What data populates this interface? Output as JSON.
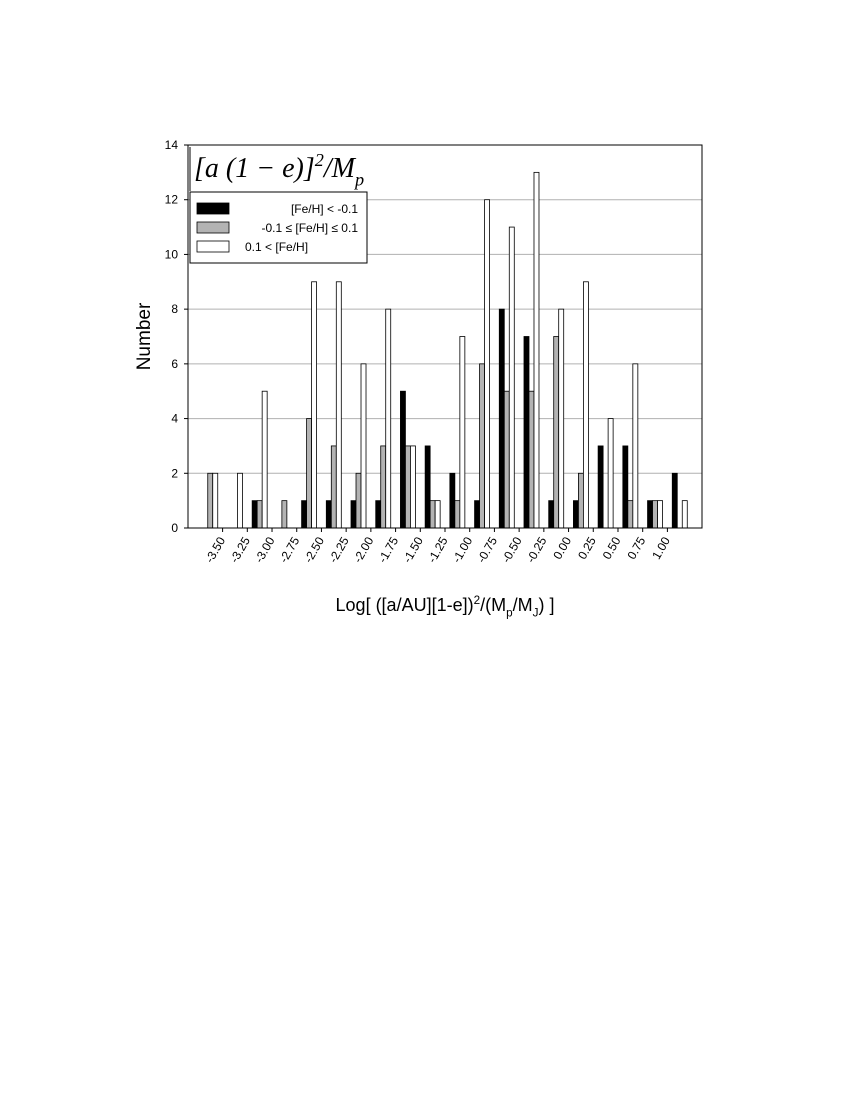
{
  "chart_data": {
    "type": "histogram",
    "annotation": [
      {
        "text": "[a (1 − e)]"
      },
      {
        "text": "2",
        "script": "sup"
      },
      {
        "text": "/M"
      },
      {
        "text": "p",
        "script": "sub"
      }
    ],
    "y_label": "Number",
    "x_label": [
      {
        "text": "Log[ ([a/AU][1-e])"
      },
      {
        "text": "2",
        "script": "sup"
      },
      {
        "text": "/(M"
      },
      {
        "text": "p",
        "script": "sub"
      },
      {
        "text": "/M"
      },
      {
        "text": "J",
        "script": "sub"
      },
      {
        "text": ") ]"
      }
    ],
    "bins": [
      -3.75,
      -3.5,
      -3.25,
      -3.0,
      -2.75,
      -2.5,
      -2.25,
      -2.0,
      -1.75,
      -1.5,
      -1.25,
      -1.0,
      -0.75,
      -0.5,
      -0.25,
      0.0,
      0.25,
      0.5,
      0.75,
      1.0,
      1.25
    ],
    "series": [
      {
        "name": "[Fe/H] < -0.1",
        "color": "#000000",
        "values": [
          0,
          0,
          1,
          0,
          1,
          1,
          1,
          1,
          5,
          3,
          2,
          1,
          8,
          7,
          1,
          1,
          3,
          3,
          1,
          2
        ]
      },
      {
        "name": "-0.1 ≤ [Fe/H] ≤ 0.1",
        "color": "#b3b3b3",
        "values": [
          2,
          0,
          1,
          1,
          4,
          3,
          2,
          3,
          3,
          1,
          1,
          6,
          5,
          5,
          7,
          2,
          0,
          1,
          1,
          0
        ]
      },
      {
        "name": "0.1 < [Fe/H]",
        "color": "#ffffff",
        "values": [
          2,
          2,
          5,
          0,
          9,
          9,
          6,
          8,
          3,
          1,
          7,
          12,
          11,
          13,
          8,
          9,
          4,
          6,
          1,
          1
        ]
      }
    ],
    "xlim": [
      -3.85,
      1.35
    ],
    "xticks": [
      {
        "value": -3.5,
        "label": "-3.50"
      },
      {
        "value": -3.25,
        "label": "-3.25"
      },
      {
        "value": -3.0,
        "label": "-3.00"
      },
      {
        "value": -2.75,
        "label": "-2.75"
      },
      {
        "value": -2.5,
        "label": "-2.50"
      },
      {
        "value": -2.25,
        "label": "-2.25"
      },
      {
        "value": -2.0,
        "label": "-2.00"
      },
      {
        "value": -1.75,
        "label": "-1.75"
      },
      {
        "value": -1.5,
        "label": "-1.50"
      },
      {
        "value": -1.25,
        "label": "-1.25"
      },
      {
        "value": -1.0,
        "label": "-1.00"
      },
      {
        "value": -0.75,
        "label": "-0.75"
      },
      {
        "value": -0.5,
        "label": "-0.50"
      },
      {
        "value": -0.25,
        "label": "-0.25"
      },
      {
        "value": 0.0,
        "label": "0.00"
      },
      {
        "value": 0.25,
        "label": "0.25"
      },
      {
        "value": 0.5,
        "label": "0.50"
      },
      {
        "value": 0.75,
        "label": "0.75"
      },
      {
        "value": 1.0,
        "label": "1.00"
      }
    ],
    "ylim": [
      0,
      14
    ],
    "yticks": [
      0,
      2,
      4,
      6,
      8,
      10,
      12,
      14
    ],
    "grid": true,
    "legend": "upper left"
  }
}
